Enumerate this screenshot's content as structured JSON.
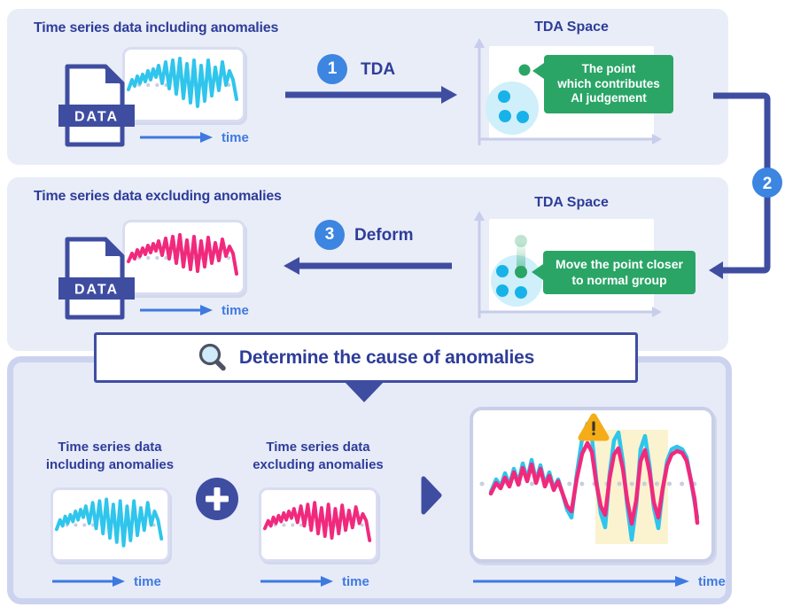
{
  "colors": {
    "indigo": "#3f4da1",
    "text_indigo": "#2e3d99",
    "badge_blue": "#3c85e1",
    "time_blue": "#3e79e0",
    "cyan": "#2fc5ec",
    "pink": "#f1297d",
    "green": "#2aa566",
    "cluster_fill": "#cfeffa",
    "dot_cyan": "#17b2e8",
    "panel_bg": "#e9edf8",
    "panel3_bg": "#e7ebf8",
    "panel3_border": "#ccd3ee",
    "box_border": "#d9ddf1",
    "bigbox_border": "#c9cfe9",
    "axis": "#c7cdea",
    "baseline_dots": "#c8cee2",
    "highlight": "#fbf3cf",
    "warning": "#f4ac19"
  },
  "labels": {
    "time": "time"
  },
  "panel1": {
    "title": "Time series data including anomalies",
    "data_label": "DATA",
    "step_number": "1",
    "step_label": "TDA",
    "tda_title": "TDA Space",
    "callout_lines": [
      "The point",
      "which contributes",
      "AI judgement"
    ]
  },
  "panel2": {
    "title": "Time series data excluding anomalies",
    "data_label": "DATA",
    "step_number": "3",
    "step_label": "Deform",
    "tda_title": "TDA Space",
    "callout_lines": [
      "Move the point closer",
      "to normal group"
    ]
  },
  "connector": {
    "badge": "2"
  },
  "bottom": {
    "header": "Determine the cause of anomalies",
    "left_title_lines": [
      "Time series data",
      "including anomalies"
    ],
    "right_title_lines": [
      "Time series data",
      "excluding anomalies"
    ]
  },
  "icons": {
    "header_icon": "magnifier-icon",
    "combine_icon": "plus-icon",
    "result_icon": "play-triangle-icon",
    "alert_icon": "warning-exclamation-icon",
    "file_icon": "data-file-icon"
  },
  "waves": {
    "small_cyan": [
      [
        4,
        45
      ],
      [
        8,
        34
      ],
      [
        11,
        41
      ],
      [
        14,
        30
      ],
      [
        17,
        38
      ],
      [
        20,
        28
      ],
      [
        23,
        36
      ],
      [
        26,
        24
      ],
      [
        29,
        34
      ],
      [
        32,
        22
      ],
      [
        35,
        31
      ],
      [
        38,
        18
      ],
      [
        42,
        38
      ],
      [
        46,
        14
      ],
      [
        50,
        44
      ],
      [
        54,
        12
      ],
      [
        58,
        50
      ],
      [
        62,
        10
      ],
      [
        66,
        55
      ],
      [
        70,
        16
      ],
      [
        74,
        60
      ],
      [
        78,
        12
      ],
      [
        82,
        64
      ],
      [
        86,
        18
      ],
      [
        90,
        58
      ],
      [
        94,
        12
      ],
      [
        98,
        52
      ],
      [
        102,
        20
      ],
      [
        106,
        46
      ],
      [
        110,
        14
      ],
      [
        114,
        40
      ],
      [
        118,
        24
      ],
      [
        122,
        34
      ],
      [
        126,
        56
      ]
    ],
    "small_pink": [
      [
        4,
        44
      ],
      [
        8,
        35
      ],
      [
        11,
        41
      ],
      [
        14,
        31
      ],
      [
        17,
        38
      ],
      [
        20,
        29
      ],
      [
        23,
        36
      ],
      [
        26,
        26
      ],
      [
        29,
        34
      ],
      [
        32,
        24
      ],
      [
        35,
        32
      ],
      [
        38,
        21
      ],
      [
        42,
        37
      ],
      [
        46,
        18
      ],
      [
        50,
        41
      ],
      [
        54,
        16
      ],
      [
        58,
        46
      ],
      [
        62,
        14
      ],
      [
        66,
        50
      ],
      [
        70,
        20
      ],
      [
        74,
        53
      ],
      [
        78,
        16
      ],
      [
        82,
        55
      ],
      [
        86,
        21
      ],
      [
        90,
        50
      ],
      [
        94,
        17
      ],
      [
        98,
        46
      ],
      [
        102,
        23
      ],
      [
        106,
        43
      ],
      [
        110,
        19
      ],
      [
        114,
        38
      ],
      [
        118,
        27
      ],
      [
        122,
        35
      ],
      [
        126,
        58
      ]
    ],
    "big_cyan": [
      [
        20,
        92
      ],
      [
        26,
        78
      ],
      [
        31,
        86
      ],
      [
        36,
        71
      ],
      [
        41,
        84
      ],
      [
        46,
        66
      ],
      [
        51,
        82
      ],
      [
        56,
        60
      ],
      [
        61,
        78
      ],
      [
        66,
        56
      ],
      [
        71,
        80
      ],
      [
        76,
        62
      ],
      [
        81,
        84
      ],
      [
        86,
        70
      ],
      [
        91,
        88
      ],
      [
        96,
        78
      ],
      [
        101,
        94
      ],
      [
        106,
        112
      ],
      [
        111,
        121
      ],
      [
        117,
        72
      ],
      [
        123,
        32
      ],
      [
        129,
        15
      ],
      [
        134,
        30
      ],
      [
        139,
        78
      ],
      [
        144,
        116
      ],
      [
        149,
        132
      ],
      [
        154,
        72
      ],
      [
        159,
        34
      ],
      [
        164,
        25
      ],
      [
        169,
        58
      ],
      [
        174,
        108
      ],
      [
        179,
        146
      ],
      [
        184,
        108
      ],
      [
        189,
        44
      ],
      [
        194,
        29
      ],
      [
        199,
        62
      ],
      [
        204,
        110
      ],
      [
        209,
        133
      ],
      [
        214,
        90
      ],
      [
        219,
        57
      ],
      [
        224,
        44
      ],
      [
        230,
        41
      ],
      [
        236,
        44
      ],
      [
        241,
        53
      ],
      [
        246,
        80
      ],
      [
        250,
        104
      ],
      [
        253,
        121
      ]
    ],
    "big_pink": [
      [
        20,
        94
      ],
      [
        26,
        82
      ],
      [
        31,
        88
      ],
      [
        36,
        76
      ],
      [
        41,
        86
      ],
      [
        46,
        70
      ],
      [
        51,
        84
      ],
      [
        56,
        65
      ],
      [
        61,
        80
      ],
      [
        66,
        61
      ],
      [
        71,
        82
      ],
      [
        76,
        66
      ],
      [
        81,
        86
      ],
      [
        86,
        74
      ],
      [
        91,
        90
      ],
      [
        96,
        80
      ],
      [
        101,
        94
      ],
      [
        106,
        108
      ],
      [
        111,
        114
      ],
      [
        117,
        77
      ],
      [
        123,
        49
      ],
      [
        129,
        37
      ],
      [
        134,
        47
      ],
      [
        139,
        82
      ],
      [
        144,
        108
      ],
      [
        149,
        118
      ],
      [
        154,
        77
      ],
      [
        159,
        50
      ],
      [
        164,
        43
      ],
      [
        169,
        66
      ],
      [
        174,
        102
      ],
      [
        179,
        128
      ],
      [
        184,
        102
      ],
      [
        189,
        57
      ],
      [
        194,
        45
      ],
      [
        199,
        69
      ],
      [
        204,
        104
      ],
      [
        209,
        121
      ],
      [
        214,
        88
      ],
      [
        219,
        62
      ],
      [
        224,
        50
      ],
      [
        230,
        46
      ],
      [
        236,
        48
      ],
      [
        241,
        57
      ],
      [
        246,
        80
      ],
      [
        250,
        100
      ],
      [
        253,
        127
      ]
    ]
  }
}
